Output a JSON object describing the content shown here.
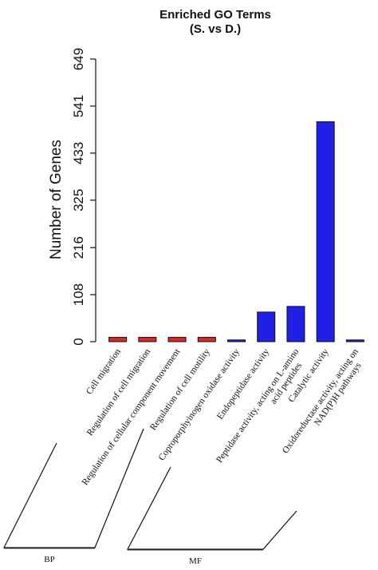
{
  "chart_data": {
    "type": "bar",
    "title": "Enriched GO Terms",
    "subtitle": "(S. vs D.)",
    "ylabel": "Number of Genes",
    "xlabel": "",
    "ylim": [
      0,
      649
    ],
    "yticks": [
      0,
      108,
      216,
      325,
      433,
      541,
      649
    ],
    "categories": [
      "Cell migration",
      "Regulation of cell migration",
      "Regulation of cellular component movement",
      "Regulation of cell motility",
      "Coproporphyinogen oxidase activity",
      "Endopeptidase activity",
      "Peptidase activity, acting on L-amino acid peptides",
      "Catalytic activity",
      "Oxidoreductase activity, acting on NAD(P)H pathways"
    ],
    "label_lines": [
      [
        "Cell migration"
      ],
      [
        "Regulation of cell migration"
      ],
      [
        "Regulation of cellular component movement"
      ],
      [
        "Regulation of cell motility"
      ],
      [
        "Coproporphyinogen oxidase activity"
      ],
      [
        "Endopeptidase activity"
      ],
      [
        "Peptidase activity, acting on L-amino",
        "acid peptides"
      ],
      [
        "Catalytic activity"
      ],
      [
        "Oxidoreductase activity, acting on",
        "NAD(P)H pathways"
      ]
    ],
    "values": [
      10,
      10,
      10,
      10,
      4,
      68,
      81,
      505,
      4
    ],
    "groups": [
      "BP",
      "BP",
      "BP",
      "BP",
      "MF",
      "MF",
      "MF",
      "MF",
      "MF"
    ],
    "group_labels": [
      "BP",
      "MF"
    ],
    "colors": {
      "BP": "#d42a2a",
      "MF": "#1f1fe6"
    },
    "grid": false,
    "legend": "none"
  }
}
